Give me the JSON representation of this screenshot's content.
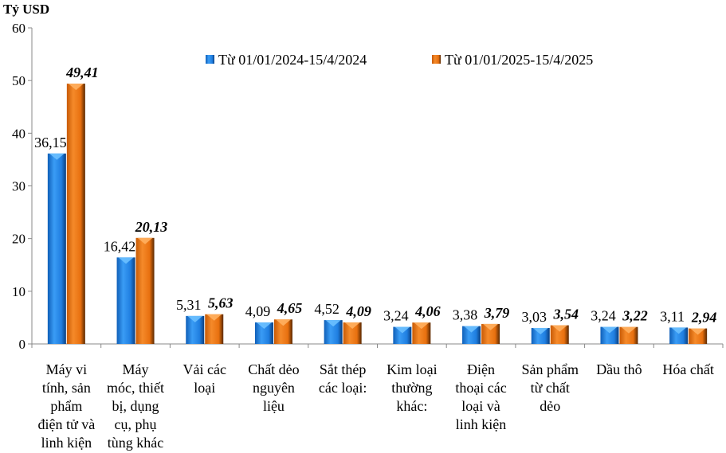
{
  "chart_data": {
    "type": "bar",
    "ylabel": "Tỷ USD",
    "ylim": [
      0,
      60
    ],
    "yticks": [
      0,
      10,
      20,
      30,
      40,
      50,
      60
    ],
    "grid": false,
    "legend_position": "top-center",
    "categories": [
      [
        "Máy vi",
        "tính, sản",
        "phẩm",
        "điện tử và",
        "linh kiện"
      ],
      [
        "Máy",
        "móc, thiết",
        "bị, dụng",
        "cụ, phụ",
        "tùng khác"
      ],
      [
        "Vải các",
        "loại"
      ],
      [
        "Chất dẻo",
        "nguyên",
        "liệu"
      ],
      [
        "Sắt thép",
        "các loại:"
      ],
      [
        "Kim loại",
        "thường",
        "khác:"
      ],
      [
        "Điện",
        "thoại các",
        "loại và",
        "linh kiện"
      ],
      [
        "Sản phẩm",
        "từ chất",
        "dẻo"
      ],
      [
        "Dầu thô"
      ],
      [
        "Hóa chất"
      ]
    ],
    "series": [
      {
        "name": "Từ 01/01/2024-15/4/2024",
        "color": "#1f7ee0",
        "values": [
          36.15,
          16.42,
          5.31,
          4.09,
          4.52,
          3.24,
          3.38,
          3.03,
          3.24,
          3.11
        ],
        "labels": [
          "36,15",
          "16,42",
          "5,31",
          "4,09",
          "4,52",
          "3,24",
          "3,38",
          "3,03",
          "3,24",
          "3,11"
        ]
      },
      {
        "name": "Từ 01/01/2025-15/4/2025",
        "color": "#e8700f",
        "values": [
          49.41,
          20.13,
          5.63,
          4.65,
          4.09,
          4.06,
          3.79,
          3.54,
          3.22,
          2.94
        ],
        "labels": [
          "49,41",
          "20,13",
          "5,63",
          "4,65",
          "4,09",
          "4,06",
          "3,79",
          "3,54",
          "3,22",
          "2,94"
        ]
      }
    ]
  }
}
